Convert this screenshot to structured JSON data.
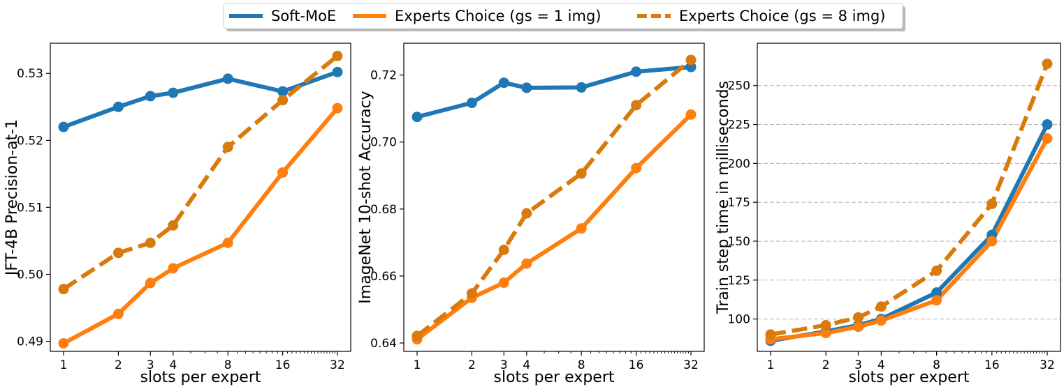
{
  "legend": {
    "items": [
      {
        "label": "Soft-MoE",
        "color": "#1f77b4",
        "dash": false
      },
      {
        "label": "Experts Choice (gs = 1 img)",
        "color": "#ff7f0e",
        "dash": false
      },
      {
        "label": "Experts Choice (gs = 8 img)",
        "color": "#d97a0c",
        "dash": true
      }
    ]
  },
  "chart_data": [
    {
      "type": "line",
      "xscale": "log2",
      "x": [
        1,
        2,
        3,
        4,
        8,
        16,
        32
      ],
      "x_tick_labels": [
        "1",
        "2",
        "3",
        "4",
        "8",
        "16",
        "32"
      ],
      "xlabel": "slots per expert",
      "ylabel": "JFT-4B Precision-at-1",
      "ylim": [
        0.4885,
        0.5345
      ],
      "yticks": [
        0.49,
        0.5,
        0.51,
        0.52,
        0.53
      ],
      "y_tick_labels": [
        "0.49",
        "0.50",
        "0.51",
        "0.52",
        "0.53"
      ],
      "grid": false,
      "series": [
        {
          "name": "Soft-MoE",
          "color": "#1f77b4",
          "dash": false,
          "values": [
            0.522,
            0.525,
            0.5266,
            0.5271,
            0.5292,
            0.5273,
            0.5302
          ]
        },
        {
          "name": "Experts Choice (gs = 1 img)",
          "color": "#ff7f0e",
          "dash": false,
          "values": [
            0.4897,
            0.4941,
            0.4987,
            0.5009,
            0.5047,
            0.5152,
            0.5248
          ]
        },
        {
          "name": "Experts Choice (gs = 8 img)",
          "color": "#d97a0c",
          "dash": true,
          "values": [
            0.4978,
            0.5032,
            0.5047,
            0.5073,
            0.519,
            0.526,
            0.5326
          ]
        }
      ]
    },
    {
      "type": "line",
      "xscale": "log2",
      "x": [
        1,
        2,
        3,
        4,
        8,
        16,
        32
      ],
      "x_tick_labels": [
        "1",
        "2",
        "3",
        "4",
        "8",
        "16",
        "32"
      ],
      "xlabel": "slots per expert",
      "ylabel": "ImageNet 10-shot Accuracy",
      "ylim": [
        0.6375,
        0.7295
      ],
      "yticks": [
        0.64,
        0.66,
        0.68,
        0.7,
        0.72
      ],
      "y_tick_labels": [
        "0.64",
        "0.66",
        "0.68",
        "0.70",
        "0.72"
      ],
      "grid": false,
      "series": [
        {
          "name": "Soft-MoE",
          "color": "#1f77b4",
          "dash": false,
          "values": [
            0.7075,
            0.7117,
            0.7177,
            0.7162,
            0.7163,
            0.721,
            0.7224
          ]
        },
        {
          "name": "Experts Choice (gs = 1 img)",
          "color": "#ff7f0e",
          "dash": false,
          "values": [
            0.6411,
            0.6535,
            0.658,
            0.6637,
            0.6742,
            0.6922,
            0.7082
          ]
        },
        {
          "name": "Experts Choice (gs = 8 img)",
          "color": "#d97a0c",
          "dash": true,
          "values": [
            0.6421,
            0.6548,
            0.6678,
            0.6787,
            0.6906,
            0.711,
            0.7245
          ]
        }
      ]
    },
    {
      "type": "line",
      "xscale": "log2",
      "x": [
        1,
        2,
        3,
        4,
        8,
        16,
        32
      ],
      "x_tick_labels": [
        "1",
        "2",
        "3",
        "4",
        "8",
        "16",
        "32"
      ],
      "xlabel": "slots per expert",
      "ylabel": "Train step time in milliseconds",
      "ylim": [
        79.2,
        277.2
      ],
      "yticks": [
        100,
        125,
        150,
        175,
        200,
        225,
        250
      ],
      "y_tick_labels": [
        "100",
        "125",
        "150",
        "175",
        "200",
        "225",
        "250"
      ],
      "grid": true,
      "grid_axis": "y",
      "series": [
        {
          "name": "Soft-MoE",
          "color": "#1f77b4",
          "dash": false,
          "values": [
            86,
            92,
            96,
            100,
            117,
            154,
            225
          ]
        },
        {
          "name": "Experts Choice (gs = 1 img)",
          "color": "#ff7f0e",
          "dash": false,
          "values": [
            87,
            91,
            95,
            99,
            112,
            150,
            216
          ]
        },
        {
          "name": "Experts Choice (gs = 8 img)",
          "color": "#d97a0c",
          "dash": true,
          "values": [
            90,
            96,
            101,
            108,
            131,
            174,
            264
          ]
        }
      ]
    }
  ]
}
